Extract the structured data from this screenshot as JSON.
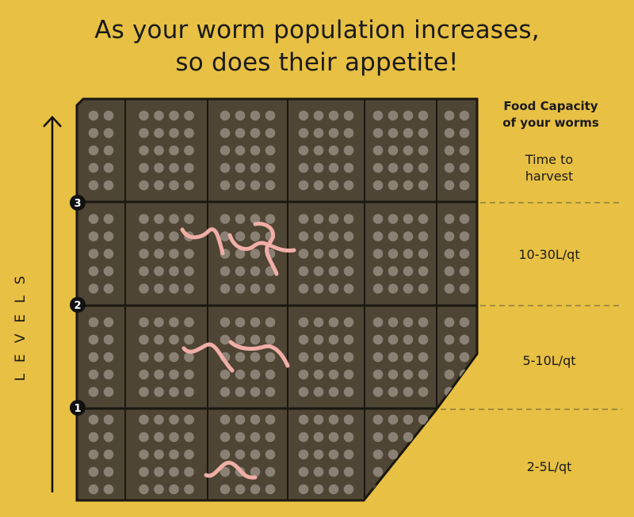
{
  "title": {
    "line1": "As your worm population increases,",
    "line2": "so does their appetite!"
  },
  "header": {
    "line1": "Food Capacity",
    "line2": "of your worms"
  },
  "axis_label": "LEVELS",
  "levels": [
    "1",
    "2",
    "3"
  ],
  "capacities": {
    "top": [
      "Time to",
      "harvest"
    ],
    "level3": "10-30L/qt",
    "level2": "5-10L/qt",
    "level1": "2-5L/qt"
  },
  "colors": {
    "background": "#e8c043",
    "bin": "#4e4534",
    "dots": "#8a8074",
    "worm": "#f0aea6",
    "ink": "#111111"
  }
}
